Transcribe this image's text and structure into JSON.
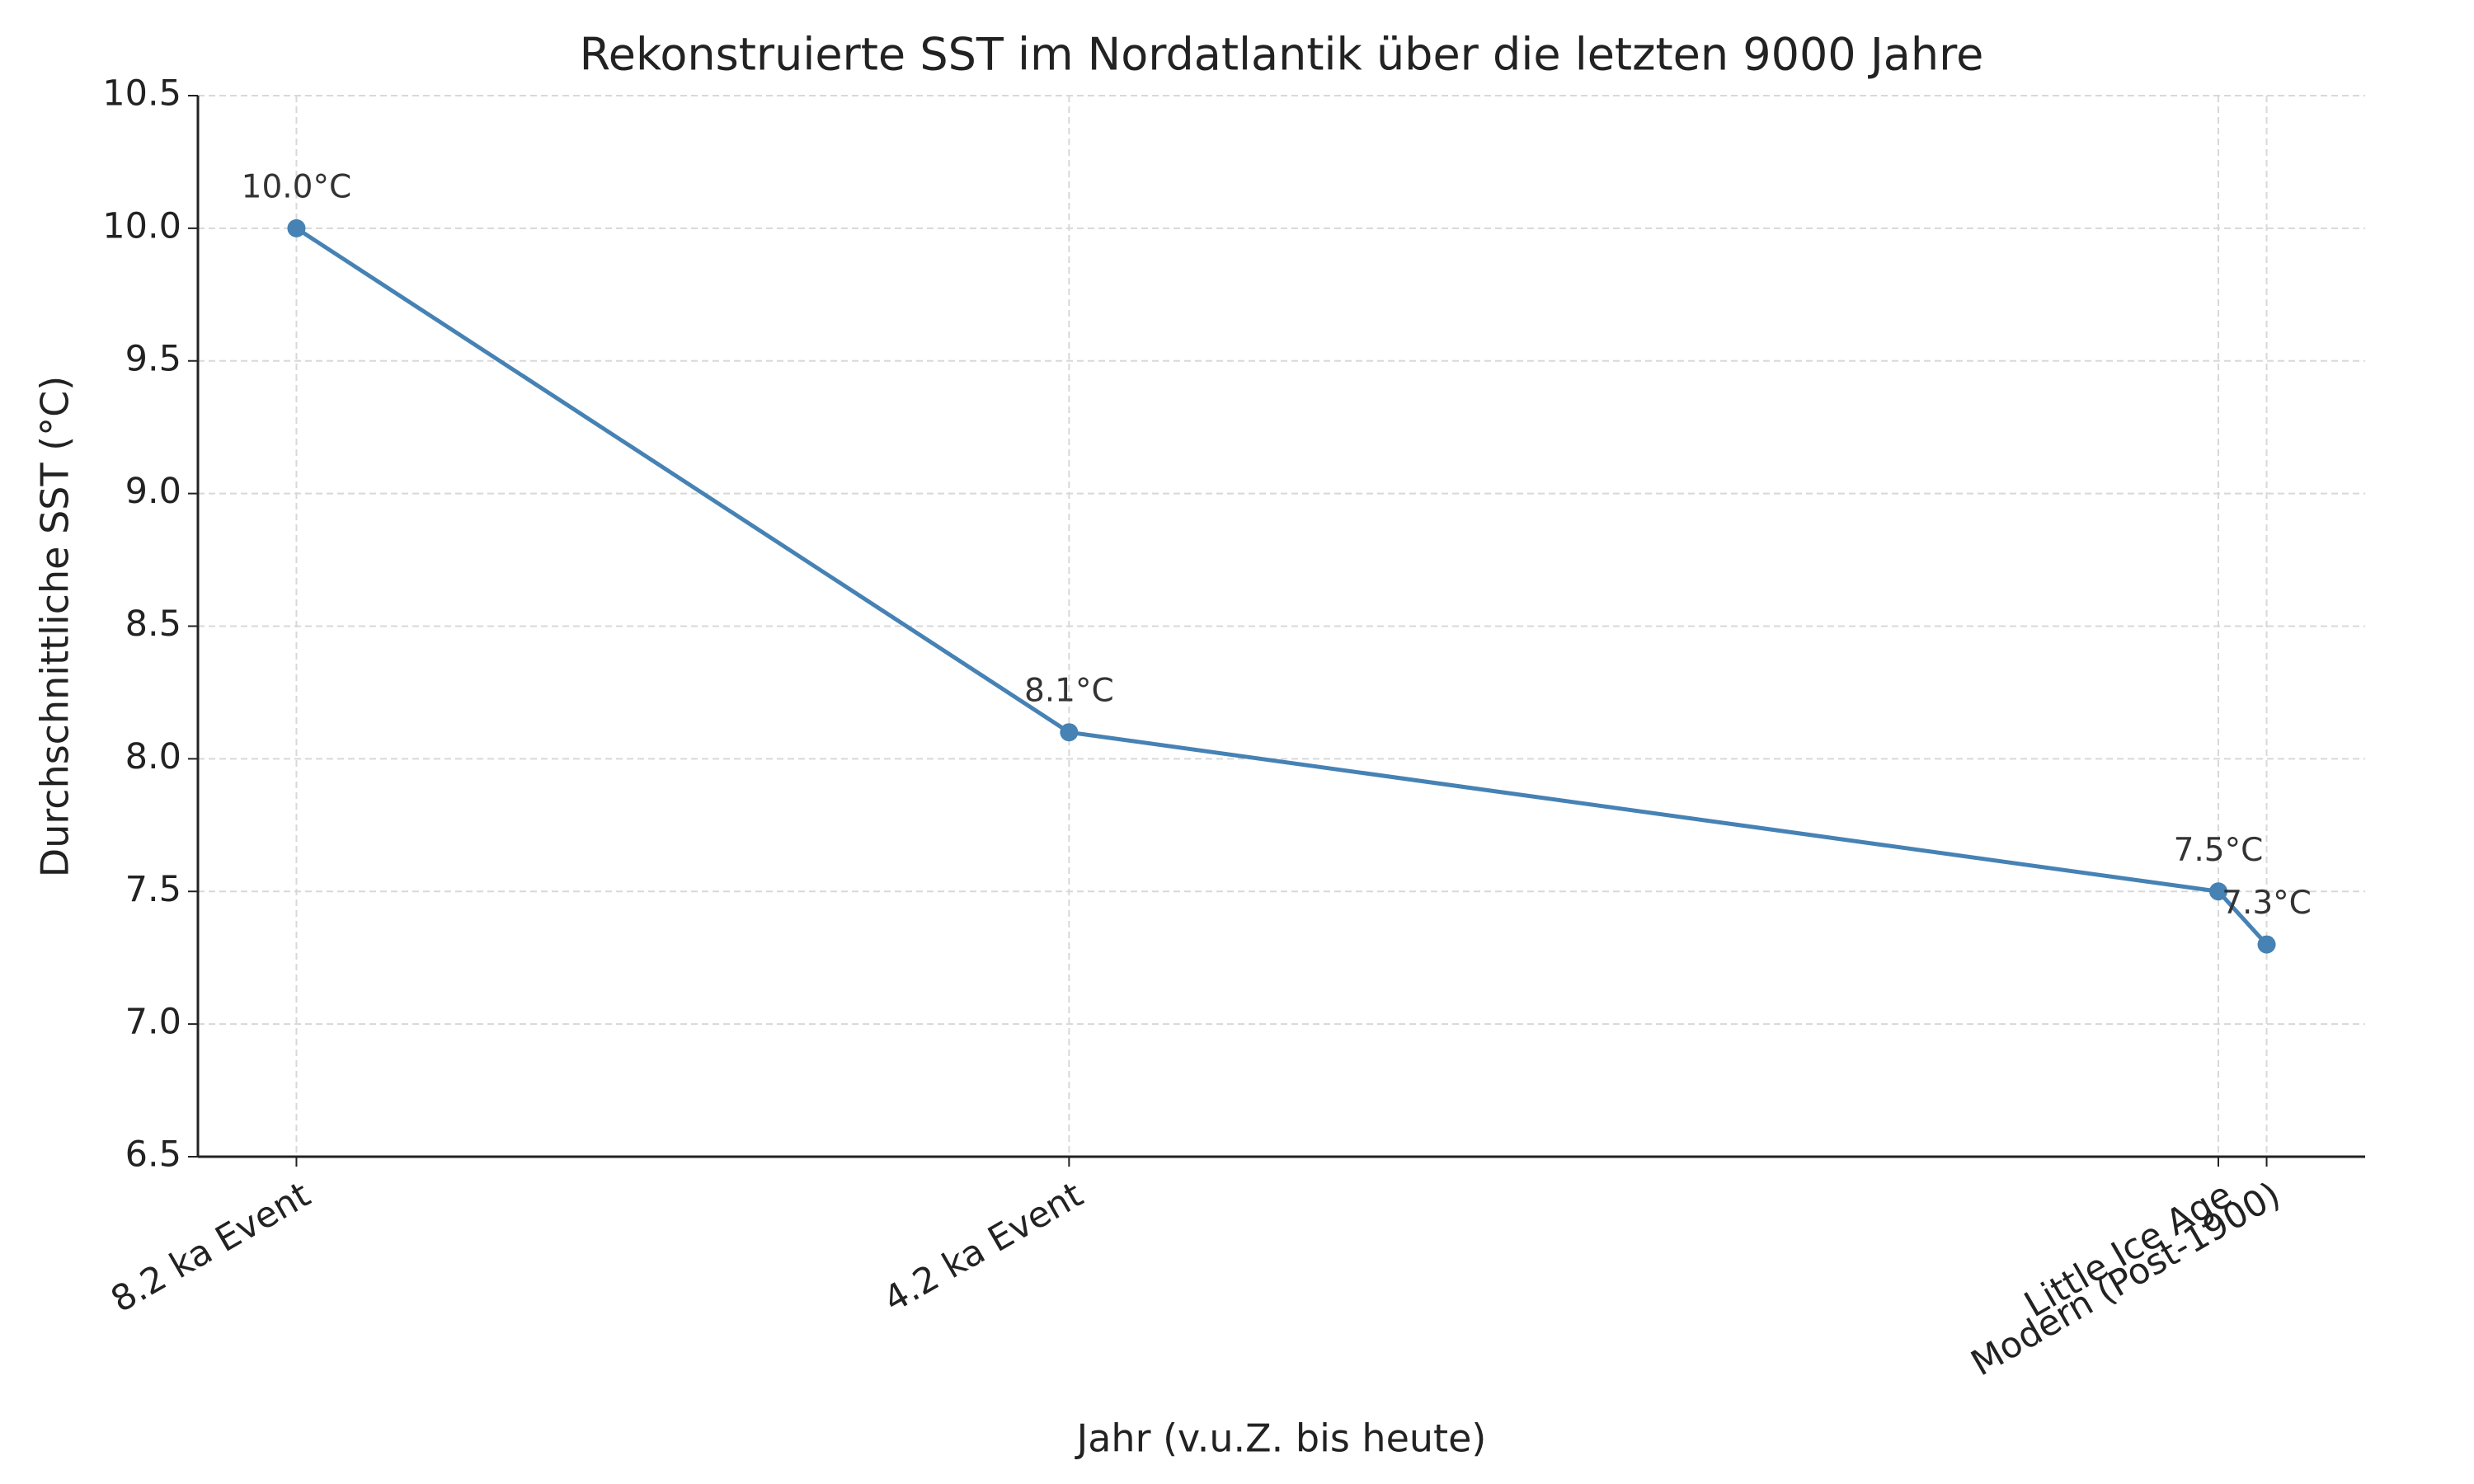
{
  "chart_data": {
    "type": "line",
    "title": "Rekonstruierte SST im Nordatlantik über die letzten 9000 Jahre",
    "x_label": "Jahr (v.u.Z. bis heute)",
    "y_label": "Durchschnittliche SST (°C)",
    "x": [
      -8200,
      -4200,
      1750,
      2000
    ],
    "xlim": [
      -8710,
      2510
    ],
    "xticks": [
      {
        "value": -8200,
        "label": "8.2 ka Event"
      },
      {
        "value": -4200,
        "label": "4.2 ka Event"
      },
      {
        "value": 1750,
        "label": "Little Ice Age"
      },
      {
        "value": 2000,
        "label": "Modern (Post-1900)"
      }
    ],
    "ylim": [
      6.5,
      10.5
    ],
    "yticks": [
      6.5,
      {
        "value": 7,
        "label": "7.0"
      },
      7.5,
      {
        "value": 8,
        "label": "8.0"
      },
      8.5,
      {
        "value": 9,
        "label": "9.0"
      },
      9.5,
      {
        "value": 10,
        "label": "10.0"
      },
      10.5
    ],
    "grid": true,
    "series": [
      {
        "color": "#4682b4",
        "values": [
          10.0,
          8.1,
          7.5,
          7.3
        ],
        "value_labels": [
          "10.0°C",
          "8.1°C",
          "7.5°C",
          "7.3°C"
        ]
      }
    ]
  }
}
